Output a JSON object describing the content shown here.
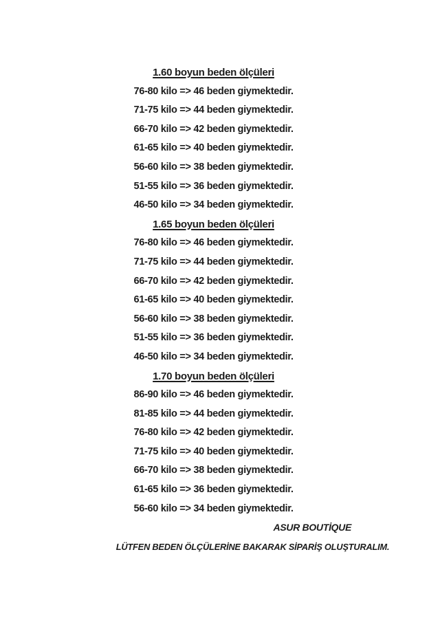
{
  "colors": {
    "background": "#ffffff",
    "text": "#1c1c1c"
  },
  "sections": [
    {
      "title": "1.60 boyun beden ölçüleri",
      "rows": [
        "76-80 kilo => 46 beden giymektedir.",
        "71-75 kilo => 44 beden giymektedir.",
        "66-70 kilo => 42 beden giymektedir.",
        "61-65 kilo => 40 beden giymektedir.",
        "56-60 kilo => 38 beden giymektedir.",
        "51-55 kilo => 36 beden giymektedir.",
        "46-50 kilo => 34 beden giymektedir."
      ]
    },
    {
      "title": "1.65 boyun beden ölçüleri",
      "rows": [
        "76-80 kilo => 46 beden giymektedir.",
        "71-75 kilo => 44 beden giymektedir.",
        "66-70 kilo => 42 beden giymektedir.",
        "61-65 kilo => 40 beden giymektedir.",
        "56-60 kilo => 38 beden giymektedir.",
        "51-55 kilo => 36 beden giymektedir.",
        "46-50 kilo => 34 beden giymektedir."
      ]
    },
    {
      "title": "1.70 boyun beden ölçüleri",
      "rows": [
        "86-90 kilo => 46 beden giymektedir.",
        "81-85 kilo => 44 beden giymektedir.",
        "76-80 kilo => 42 beden giymektedir.",
        "71-75 kilo => 40 beden giymektedir.",
        "66-70 kilo => 38 beden giymektedir.",
        "61-65 kilo => 36 beden giymektedir.",
        "56-60 kilo => 34 beden giymektedir."
      ]
    }
  ],
  "signature": "ASUR BOUTİQUE",
  "note": "LÜTFEN BEDEN ÖLÇÜLERİNE BAKARAK SİPARİŞ OLUŞTURALIM."
}
